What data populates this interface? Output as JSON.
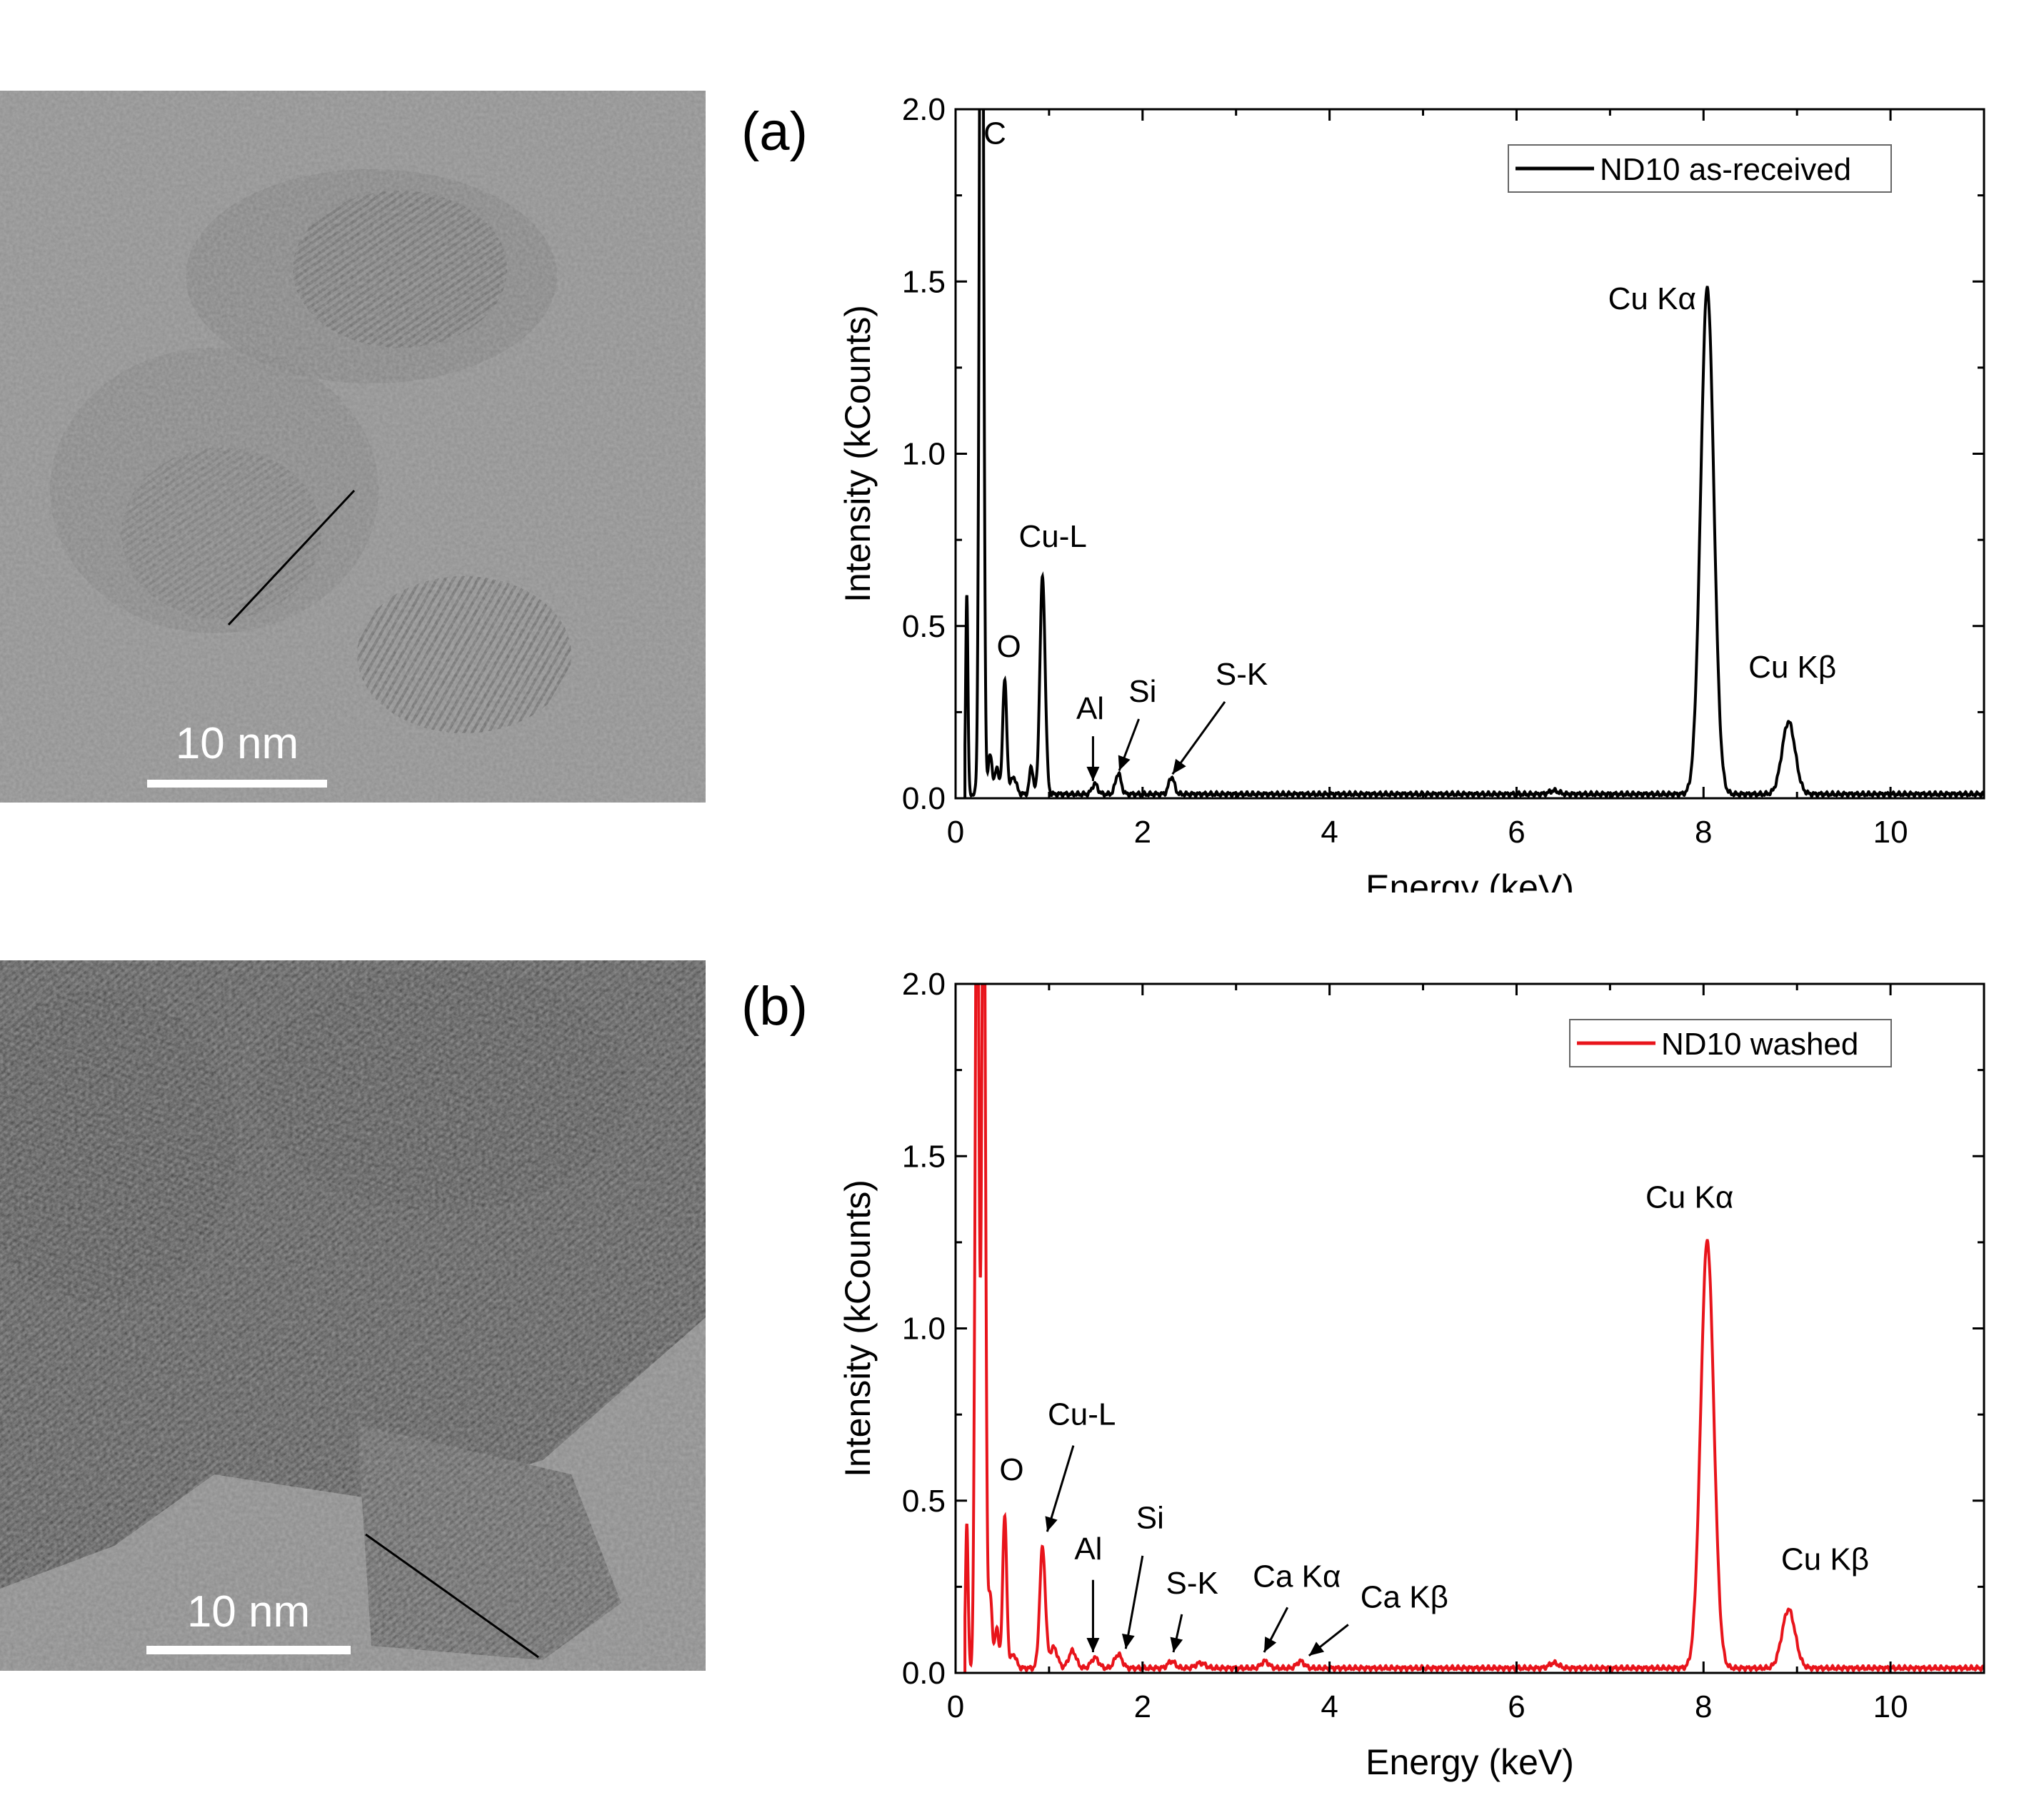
{
  "colors": {
    "axis": "#000000",
    "series_a": "#000000",
    "series_b": "#e8141b",
    "scale_bar": "#ffffff"
  },
  "images": [
    {
      "name": "tem-image-a",
      "scale_label": "10 nm"
    },
    {
      "name": "tem-image-b",
      "scale_label": "10 nm"
    }
  ],
  "chart_data": [
    {
      "type": "line",
      "panel_label": "(a)",
      "xlabel": "Energy (keV)",
      "ylabel": "Intensity (kCounts)",
      "xlim": [
        0,
        11
      ],
      "ylim": [
        0,
        2.0
      ],
      "x_ticks": [
        0,
        2,
        4,
        6,
        8,
        10
      ],
      "x_tick_labels": [
        "0",
        "2",
        "4",
        "6",
        "8",
        "10"
      ],
      "y_ticks": [
        0.0,
        0.5,
        1.0,
        1.5,
        2.0
      ],
      "y_tick_labels": [
        "0.0",
        "0.5",
        "1.0",
        "1.5",
        "2.0"
      ],
      "legend": {
        "position": "top-right",
        "entries": [
          "ND10 as-received"
        ]
      },
      "series": [
        {
          "name": "ND10 as-received",
          "color": "#000000",
          "baseline": 0.012,
          "peaks": [
            {
              "x": 0.12,
              "h": 0.58,
              "w": 0.012
            },
            {
              "x": 0.277,
              "h": 3.5,
              "w": 0.02
            },
            {
              "x": 0.37,
              "h": 0.12,
              "w": 0.02
            },
            {
              "x": 0.44,
              "h": 0.08,
              "w": 0.02
            },
            {
              "x": 0.525,
              "h": 0.33,
              "w": 0.022
            },
            {
              "x": 0.62,
              "h": 0.05,
              "w": 0.03
            },
            {
              "x": 0.81,
              "h": 0.08,
              "w": 0.02
            },
            {
              "x": 0.93,
              "h": 0.63,
              "w": 0.028
            },
            {
              "x": 1.49,
              "h": 0.03,
              "w": 0.03
            },
            {
              "x": 1.74,
              "h": 0.06,
              "w": 0.03
            },
            {
              "x": 2.31,
              "h": 0.05,
              "w": 0.03
            },
            {
              "x": 6.4,
              "h": 0.01,
              "w": 0.05
            },
            {
              "x": 8.04,
              "h": 1.47,
              "w": 0.07
            },
            {
              "x": 8.91,
              "h": 0.21,
              "w": 0.07
            }
          ],
          "range": [
            0.1,
            11
          ]
        }
      ],
      "annotations": [
        {
          "text": "C",
          "x": 0.42,
          "y": 1.9
        },
        {
          "text": "O",
          "x": 0.57,
          "y": 0.41
        },
        {
          "text": "Cu-L",
          "x": 1.04,
          "y": 0.73
        },
        {
          "text": "Al",
          "x": 1.44,
          "y": 0.23
        },
        {
          "text": "Si",
          "x": 2.0,
          "y": 0.28
        },
        {
          "text": "S-K",
          "x": 3.06,
          "y": 0.33
        },
        {
          "text": "Cu Kα",
          "x": 7.45,
          "y": 1.42
        },
        {
          "text": "Cu Kβ",
          "x": 8.95,
          "y": 0.35
        }
      ],
      "arrows": [
        {
          "from": [
            1.47,
            0.18
          ],
          "to": [
            1.47,
            0.05
          ]
        },
        {
          "from": [
            1.96,
            0.23
          ],
          "to": [
            1.75,
            0.08
          ]
        },
        {
          "from": [
            2.88,
            0.28
          ],
          "to": [
            2.32,
            0.07
          ]
        }
      ]
    },
    {
      "type": "line",
      "panel_label": "(b)",
      "xlabel": "Energy (keV)",
      "ylabel": "Intensity (kCounts)",
      "xlim": [
        0,
        11
      ],
      "ylim": [
        0,
        2.0
      ],
      "x_ticks": [
        0,
        2,
        4,
        6,
        8,
        10
      ],
      "x_tick_labels": [
        "0",
        "2",
        "4",
        "6",
        "8",
        "10"
      ],
      "y_ticks": [
        0.0,
        0.5,
        1.0,
        1.5,
        2.0
      ],
      "y_tick_labels": [
        "0.0",
        "0.5",
        "1.0",
        "1.5",
        "2.0"
      ],
      "legend": {
        "position": "top-right",
        "entries": [
          "ND10 washed"
        ]
      },
      "series": [
        {
          "name": "ND10 washed",
          "color": "#e8141b",
          "baseline": 0.014,
          "peaks": [
            {
              "x": 0.12,
              "h": 0.42,
              "w": 0.014
            },
            {
              "x": 0.23,
              "h": 2.6,
              "w": 0.02
            },
            {
              "x": 0.3,
              "h": 2.6,
              "w": 0.02
            },
            {
              "x": 0.37,
              "h": 0.22,
              "w": 0.02
            },
            {
              "x": 0.44,
              "h": 0.12,
              "w": 0.02
            },
            {
              "x": 0.525,
              "h": 0.44,
              "w": 0.022
            },
            {
              "x": 0.62,
              "h": 0.04,
              "w": 0.03
            },
            {
              "x": 0.93,
              "h": 0.35,
              "w": 0.03
            },
            {
              "x": 1.05,
              "h": 0.06,
              "w": 0.04
            },
            {
              "x": 1.25,
              "h": 0.05,
              "w": 0.04
            },
            {
              "x": 1.49,
              "h": 0.03,
              "w": 0.04
            },
            {
              "x": 1.74,
              "h": 0.04,
              "w": 0.04
            },
            {
              "x": 2.31,
              "h": 0.02,
              "w": 0.04
            },
            {
              "x": 2.62,
              "h": 0.015,
              "w": 0.05
            },
            {
              "x": 3.69,
              "h": 0.02,
              "w": 0.04
            },
            {
              "x": 3.31,
              "h": 0.02,
              "w": 0.04
            },
            {
              "x": 6.4,
              "h": 0.015,
              "w": 0.05
            },
            {
              "x": 8.04,
              "h": 1.24,
              "w": 0.07
            },
            {
              "x": 8.91,
              "h": 0.17,
              "w": 0.07
            }
          ],
          "range": [
            0.1,
            11
          ]
        }
      ],
      "annotations": [
        {
          "text": "O",
          "x": 0.6,
          "y": 0.56
        },
        {
          "text": "Cu-L",
          "x": 1.35,
          "y": 0.72
        },
        {
          "text": "Al",
          "x": 1.42,
          "y": 0.33
        },
        {
          "text": "Si",
          "x": 2.08,
          "y": 0.42
        },
        {
          "text": "S-K",
          "x": 2.53,
          "y": 0.23
        },
        {
          "text": "Ca Kα",
          "x": 3.65,
          "y": 0.25
        },
        {
          "text": "Ca Kβ",
          "x": 4.8,
          "y": 0.19
        },
        {
          "text": "Cu Kα",
          "x": 7.85,
          "y": 1.35
        },
        {
          "text": "Cu Kβ",
          "x": 9.3,
          "y": 0.3
        }
      ],
      "arrows": [
        {
          "from": [
            1.26,
            0.66
          ],
          "to": [
            0.98,
            0.41
          ]
        },
        {
          "from": [
            1.47,
            0.27
          ],
          "to": [
            1.47,
            0.06
          ]
        },
        {
          "from": [
            2.0,
            0.34
          ],
          "to": [
            1.82,
            0.07
          ]
        },
        {
          "from": [
            2.42,
            0.17
          ],
          "to": [
            2.33,
            0.06
          ]
        },
        {
          "from": [
            3.55,
            0.19
          ],
          "to": [
            3.3,
            0.06
          ]
        },
        {
          "from": [
            4.2,
            0.14
          ],
          "to": [
            3.78,
            0.05
          ]
        }
      ]
    }
  ]
}
